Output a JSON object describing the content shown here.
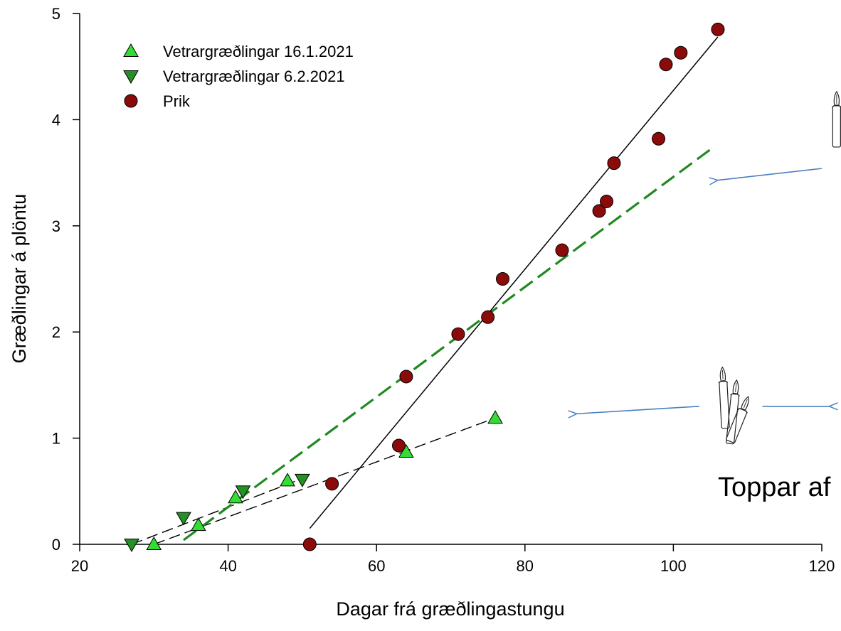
{
  "chart_data": {
    "type": "scatter",
    "xlabel": "Dagar frá græðlingastungu",
    "ylabel": "Græðlingar á plöntu",
    "xlim": [
      20,
      120
    ],
    "ylim": [
      0,
      5
    ],
    "xticks": [
      20,
      40,
      60,
      80,
      100,
      120
    ],
    "yticks": [
      0,
      1,
      2,
      3,
      4,
      5
    ],
    "grid": false,
    "legend_position": "top-left",
    "series": [
      {
        "name": "Vetrargræðlingar 16.1.2021",
        "marker": "triangle-up",
        "color": "#33dd33",
        "points": [
          [
            30,
            0.0
          ],
          [
            36,
            0.18
          ],
          [
            41,
            0.44
          ],
          [
            48,
            0.6
          ],
          [
            64,
            0.87
          ],
          [
            76,
            1.19
          ]
        ]
      },
      {
        "name": "Vetrargræðlingar   6.2.2021",
        "marker": "triangle-down",
        "color": "#239123",
        "points": [
          [
            27,
            0.0
          ],
          [
            34,
            0.25
          ],
          [
            42,
            0.5
          ],
          [
            50,
            0.61
          ]
        ]
      },
      {
        "name": "Prik",
        "marker": "circle",
        "color": "#8b0a0a",
        "points": [
          [
            51,
            0.0
          ],
          [
            54,
            0.57
          ],
          [
            63,
            0.93
          ],
          [
            64,
            1.58
          ],
          [
            71,
            1.98
          ],
          [
            75,
            2.14
          ],
          [
            77,
            2.5
          ],
          [
            85,
            2.77
          ],
          [
            90,
            3.14
          ],
          [
            91,
            3.23
          ],
          [
            92,
            3.59
          ],
          [
            98,
            3.82
          ],
          [
            99,
            4.52
          ],
          [
            101,
            4.63
          ],
          [
            106,
            4.85
          ]
        ]
      }
    ],
    "fit_lines": [
      {
        "series": "Vetrargræðlingar 16.1.2021",
        "style": "dashed",
        "color": "#000000",
        "from": [
          30,
          0.0
        ],
        "to": [
          76,
          1.19
        ]
      },
      {
        "series": "Vetrargræðlingar   6.2.2021",
        "style": "dashed",
        "color": "#000000",
        "from": [
          27,
          0.0
        ],
        "to": [
          50,
          0.62
        ]
      },
      {
        "series": "Prik",
        "style": "dashed-thick",
        "color": "#1f8a1f",
        "from": [
          34,
          0.04
        ],
        "to": [
          105,
          3.72
        ]
      },
      {
        "series": "Prik",
        "style": "solid",
        "color": "#000000",
        "from": [
          51,
          0.15
        ],
        "to": [
          106,
          4.78
        ]
      }
    ],
    "annotations": [
      {
        "text": "Toppar af",
        "anchor": [
          106,
          0.55
        ]
      }
    ],
    "arrows": [
      {
        "from": [
          120,
          3.54
        ],
        "to": [
          106,
          3.43
        ],
        "color": "#4a7fc1"
      },
      {
        "from": [
          103.5,
          1.3
        ],
        "to": [
          87,
          1.23
        ],
        "color": "#4a7fc1"
      },
      {
        "from": [
          112,
          1.3
        ],
        "to": [
          121,
          1.3
        ],
        "color": "#4a7fc1"
      }
    ],
    "icons": [
      {
        "name": "single-cutting-icon",
        "anchor": [
          122,
          4.05
        ]
      },
      {
        "name": "cutting-group-icon",
        "anchor": [
          109,
          1.2
        ]
      }
    ]
  }
}
